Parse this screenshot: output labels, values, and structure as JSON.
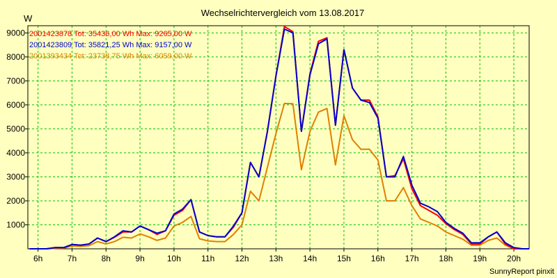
{
  "chart_data": {
    "type": "line",
    "title": "Wechselrichtervergleich vom 13.08.2017",
    "ylabel": "W",
    "footer": "SunnyReport pinxit",
    "xlim": [
      5.7,
      20.45
    ],
    "ylim": [
      0,
      9300
    ],
    "x_ticks": [
      6,
      7,
      8,
      9,
      10,
      11,
      12,
      13,
      14,
      15,
      16,
      17,
      18,
      19,
      20
    ],
    "x_tick_labels": [
      "6h",
      "7h",
      "8h",
      "9h",
      "10h",
      "11h",
      "12h",
      "13h",
      "14h",
      "15h",
      "16h",
      "17h",
      "18h",
      "19h",
      "20h"
    ],
    "y_ticks": [
      1000,
      2000,
      3000,
      4000,
      5000,
      6000,
      7000,
      8000,
      9000
    ],
    "y_tick_labels": [
      "1000",
      "2000",
      "3000",
      "4000",
      "5000",
      "6000",
      "7000",
      "8000",
      "9000"
    ],
    "grid": true,
    "legend_position": "top-left",
    "x": [
      5.75,
      6.0,
      6.25,
      6.5,
      6.75,
      7.0,
      7.25,
      7.5,
      7.75,
      8.0,
      8.25,
      8.5,
      8.75,
      9.0,
      9.25,
      9.5,
      9.75,
      10.0,
      10.25,
      10.5,
      10.75,
      11.0,
      11.25,
      11.5,
      11.75,
      12.0,
      12.25,
      12.5,
      12.75,
      13.0,
      13.25,
      13.5,
      13.75,
      14.0,
      14.25,
      14.5,
      14.75,
      15.0,
      15.25,
      15.5,
      15.75,
      16.0,
      16.25,
      16.5,
      16.75,
      17.0,
      17.25,
      17.5,
      17.75,
      18.0,
      18.25,
      18.5,
      18.75,
      19.0,
      19.25,
      19.5,
      19.75,
      20.0,
      20.25,
      20.45
    ],
    "series": [
      {
        "name": "2001423878 Tot: 35436,00 Wh Max: 9265,00 W",
        "color": "#ff0000",
        "values": [
          0,
          0,
          0,
          50,
          50,
          180,
          150,
          200,
          450,
          300,
          480,
          700,
          700,
          950,
          800,
          600,
          750,
          1400,
          1600,
          2050,
          700,
          550,
          500,
          500,
          900,
          1500,
          3600,
          3000,
          4900,
          7200,
          9265,
          9050,
          4900,
          7300,
          8650,
          8800,
          5150,
          8300,
          6700,
          6200,
          6200,
          5500,
          3000,
          3050,
          3750,
          2500,
          1800,
          1600,
          1400,
          1050,
          800,
          600,
          200,
          200,
          500,
          700,
          200,
          0,
          0,
          0
        ]
      },
      {
        "name": "2001423809 Tot: 35821,25 Wh Max: 9157,00 W",
        "color": "#0000cc",
        "values": [
          0,
          0,
          0,
          50,
          50,
          180,
          150,
          200,
          450,
          300,
          500,
          750,
          700,
          950,
          800,
          650,
          750,
          1450,
          1650,
          2050,
          700,
          550,
          500,
          500,
          950,
          1500,
          3600,
          3000,
          4900,
          7200,
          9157,
          9000,
          4900,
          7250,
          8550,
          8750,
          5150,
          8300,
          6700,
          6200,
          6100,
          5450,
          3000,
          3000,
          3850,
          2650,
          1900,
          1750,
          1550,
          1100,
          850,
          650,
          250,
          250,
          500,
          700,
          250,
          50,
          0,
          0
        ]
      },
      {
        "name": "2001393434 Tot: 23738,75 Wh Max: 6059,00 W",
        "color": "#e08000",
        "values": [
          0,
          0,
          0,
          20,
          30,
          120,
          100,
          130,
          300,
          200,
          300,
          480,
          450,
          620,
          500,
          350,
          450,
          950,
          1100,
          1350,
          420,
          330,
          300,
          300,
          600,
          1000,
          2400,
          2000,
          3400,
          4800,
          6059,
          6050,
          3300,
          4900,
          5700,
          5850,
          3500,
          5550,
          4550,
          4150,
          4150,
          3700,
          2000,
          2000,
          2550,
          1800,
          1250,
          1100,
          950,
          700,
          550,
          400,
          150,
          150,
          350,
          450,
          150,
          0,
          0,
          0
        ]
      }
    ]
  }
}
